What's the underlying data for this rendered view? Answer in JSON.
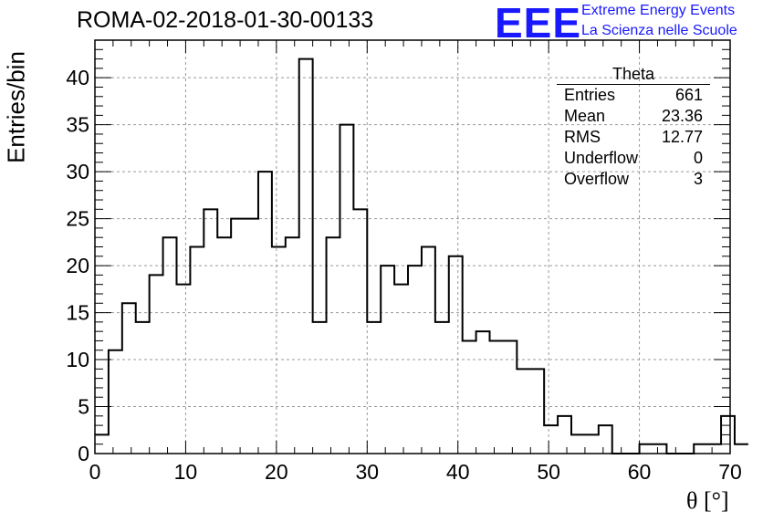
{
  "title": "ROMA-02-2018-01-30-00133",
  "logo": {
    "mark": "EEE",
    "line1": "Extreme Energy Events",
    "line2": "La Scienza nelle Scuole",
    "color": "#1919ff"
  },
  "stats": {
    "title": "Theta",
    "rows": [
      {
        "label": "Entries",
        "value": "661"
      },
      {
        "label": "Mean",
        "value": "23.36"
      },
      {
        "label": "RMS",
        "value": "12.77"
      },
      {
        "label": "Underflow",
        "value": "0"
      },
      {
        "label": "Overflow",
        "value": "3"
      }
    ]
  },
  "chart_data": {
    "type": "bar",
    "histogram": true,
    "bin_width": 1.5,
    "bin_start": 0,
    "values": [
      2,
      11,
      16,
      14,
      19,
      23,
      18,
      22,
      26,
      23,
      25,
      25,
      30,
      22,
      23,
      42,
      14,
      23,
      35,
      26,
      14,
      20,
      18,
      20,
      22,
      14,
      21,
      12,
      13,
      12,
      12,
      9,
      9,
      3,
      4,
      2,
      2,
      3,
      0,
      0,
      1,
      1,
      0,
      0,
      1,
      1,
      4,
      1
    ],
    "xlim": [
      0,
      70
    ],
    "ylim": [
      0,
      44
    ],
    "xticks": [
      0,
      10,
      20,
      30,
      40,
      50,
      60,
      70
    ],
    "yticks": [
      0,
      5,
      10,
      15,
      20,
      25,
      30,
      35,
      40
    ],
    "xlabel": "θ [°]",
    "ylabel": "Entries/bin",
    "grid": true,
    "line_color": "#000000"
  }
}
